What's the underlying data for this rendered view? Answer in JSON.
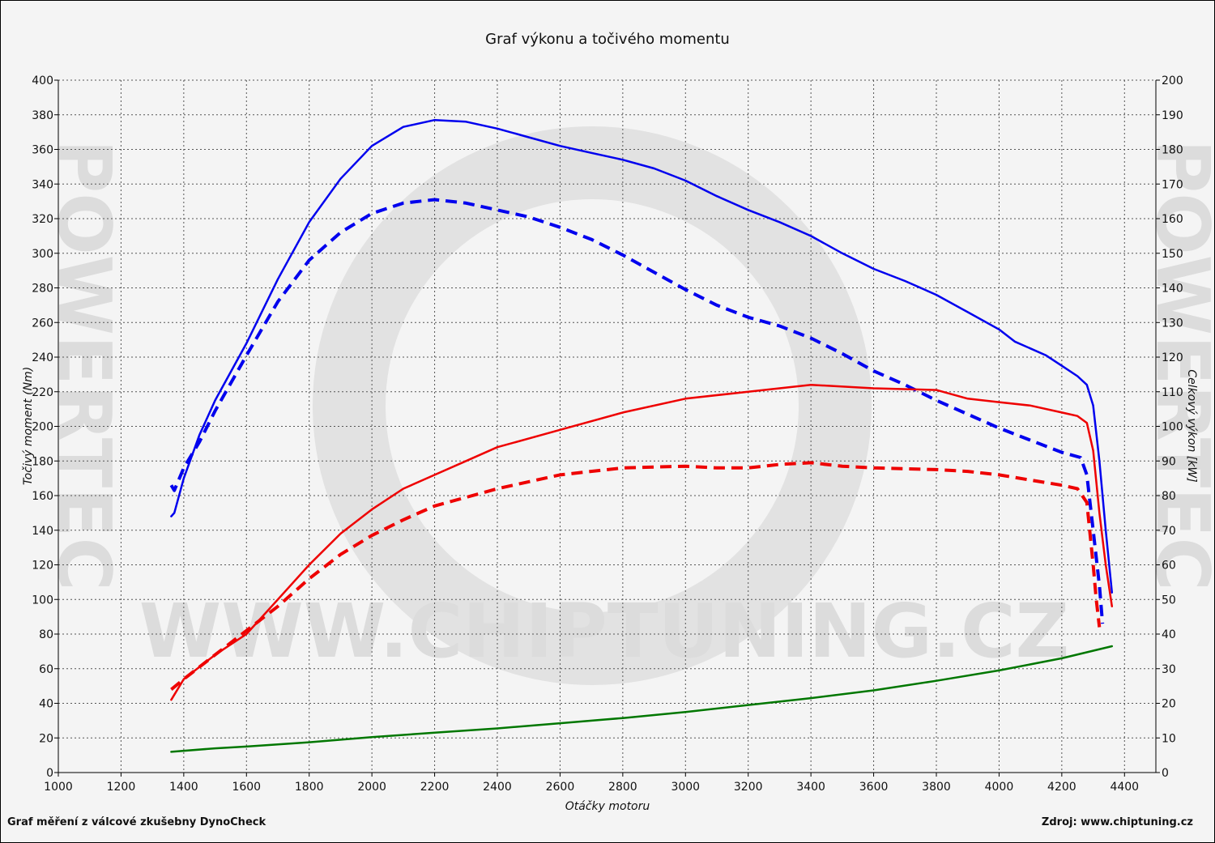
{
  "chart_data": {
    "type": "line",
    "title": "Graf výkonu a točivého momentu",
    "xlabel": "Otáčky motoru",
    "ylabel_left": "Točivý moment (Nm)",
    "ylabel_right": "Celkový výkon [kW]",
    "xlim": [
      1000,
      4500
    ],
    "ylim_left": [
      0,
      400
    ],
    "ylim_right": [
      0,
      200
    ],
    "x_ticks": [
      1000,
      1200,
      1400,
      1600,
      1800,
      2000,
      2200,
      2400,
      2600,
      2800,
      3000,
      3200,
      3400,
      3600,
      3800,
      4000,
      4200,
      4400
    ],
    "y_ticks_left": [
      0,
      20,
      40,
      60,
      80,
      100,
      120,
      140,
      160,
      180,
      200,
      220,
      240,
      260,
      280,
      300,
      320,
      340,
      360,
      380,
      400
    ],
    "y_ticks_right": [
      0,
      10,
      20,
      30,
      40,
      50,
      60,
      70,
      80,
      90,
      100,
      110,
      120,
      130,
      140,
      150,
      160,
      170,
      180,
      190,
      200
    ],
    "grid": true,
    "series": [
      {
        "axis": "left",
        "color": "#0000ee",
        "style": "solid",
        "points": [
          [
            1360,
            148
          ],
          [
            1370,
            150
          ],
          [
            1400,
            170
          ],
          [
            1450,
            195
          ],
          [
            1500,
            215
          ],
          [
            1600,
            248
          ],
          [
            1700,
            285
          ],
          [
            1800,
            318
          ],
          [
            1900,
            343
          ],
          [
            2000,
            362
          ],
          [
            2100,
            373
          ],
          [
            2200,
            377
          ],
          [
            2300,
            376
          ],
          [
            2400,
            372
          ],
          [
            2500,
            367
          ],
          [
            2600,
            362
          ],
          [
            2700,
            358
          ],
          [
            2800,
            354
          ],
          [
            2900,
            349
          ],
          [
            3000,
            342
          ],
          [
            3100,
            333
          ],
          [
            3200,
            325
          ],
          [
            3300,
            318
          ],
          [
            3400,
            310
          ],
          [
            3500,
            300
          ],
          [
            3600,
            291
          ],
          [
            3700,
            284
          ],
          [
            3800,
            276
          ],
          [
            3900,
            266
          ],
          [
            4000,
            256
          ],
          [
            4050,
            249
          ],
          [
            4100,
            245
          ],
          [
            4150,
            241
          ],
          [
            4200,
            235
          ],
          [
            4250,
            229
          ],
          [
            4280,
            224
          ],
          [
            4300,
            212
          ],
          [
            4320,
            180
          ],
          [
            4340,
            140
          ],
          [
            4360,
            104
          ]
        ]
      },
      {
        "axis": "left",
        "color": "#0000ee",
        "style": "dashed",
        "points": [
          [
            1360,
            166
          ],
          [
            1370,
            163
          ],
          [
            1400,
            176
          ],
          [
            1450,
            191
          ],
          [
            1500,
            209
          ],
          [
            1600,
            241
          ],
          [
            1700,
            272
          ],
          [
            1800,
            296
          ],
          [
            1900,
            312
          ],
          [
            2000,
            323
          ],
          [
            2100,
            329
          ],
          [
            2200,
            331
          ],
          [
            2300,
            329
          ],
          [
            2400,
            325
          ],
          [
            2500,
            321
          ],
          [
            2600,
            315
          ],
          [
            2700,
            308
          ],
          [
            2800,
            299
          ],
          [
            2900,
            289
          ],
          [
            3000,
            279
          ],
          [
            3100,
            270
          ],
          [
            3200,
            263
          ],
          [
            3300,
            258
          ],
          [
            3400,
            251
          ],
          [
            3500,
            242
          ],
          [
            3600,
            232
          ],
          [
            3700,
            224
          ],
          [
            3800,
            215
          ],
          [
            3900,
            207
          ],
          [
            4000,
            199
          ],
          [
            4100,
            192
          ],
          [
            4200,
            185
          ],
          [
            4260,
            182
          ],
          [
            4280,
            172
          ],
          [
            4300,
            140
          ],
          [
            4320,
            108
          ],
          [
            4330,
            86
          ]
        ]
      },
      {
        "axis": "right",
        "color": "#ee0000",
        "style": "solid",
        "points": [
          [
            1360,
            21
          ],
          [
            1400,
            27
          ],
          [
            1500,
            34
          ],
          [
            1600,
            40
          ],
          [
            1700,
            50
          ],
          [
            1800,
            60
          ],
          [
            1900,
            69
          ],
          [
            2000,
            76
          ],
          [
            2100,
            82
          ],
          [
            2200,
            86
          ],
          [
            2300,
            90
          ],
          [
            2400,
            94
          ],
          [
            2600,
            99
          ],
          [
            2800,
            104
          ],
          [
            3000,
            108
          ],
          [
            3200,
            110
          ],
          [
            3400,
            112
          ],
          [
            3600,
            111
          ],
          [
            3800,
            110.5
          ],
          [
            3900,
            108
          ],
          [
            4000,
            107
          ],
          [
            4100,
            106
          ],
          [
            4200,
            104
          ],
          [
            4250,
            103
          ],
          [
            4280,
            101
          ],
          [
            4300,
            93
          ],
          [
            4320,
            75
          ],
          [
            4340,
            60
          ],
          [
            4360,
            48
          ]
        ]
      },
      {
        "axis": "right",
        "color": "#ee0000",
        "style": "dashed",
        "points": [
          [
            1360,
            24
          ],
          [
            1400,
            27
          ],
          [
            1500,
            34
          ],
          [
            1600,
            41
          ],
          [
            1700,
            48
          ],
          [
            1800,
            56
          ],
          [
            1900,
            63
          ],
          [
            2000,
            68.5
          ],
          [
            2100,
            73
          ],
          [
            2200,
            77
          ],
          [
            2400,
            82
          ],
          [
            2600,
            86
          ],
          [
            2800,
            88
          ],
          [
            3000,
            88.5
          ],
          [
            3100,
            88
          ],
          [
            3200,
            88
          ],
          [
            3300,
            89
          ],
          [
            3400,
            89.5
          ],
          [
            3500,
            88.5
          ],
          [
            3600,
            88
          ],
          [
            3800,
            87.5
          ],
          [
            3900,
            87
          ],
          [
            4000,
            86
          ],
          [
            4100,
            84.5
          ],
          [
            4200,
            83
          ],
          [
            4250,
            82
          ],
          [
            4280,
            78
          ],
          [
            4300,
            60
          ],
          [
            4310,
            50
          ],
          [
            4320,
            42
          ]
        ]
      },
      {
        "axis": "left",
        "color": "#007700",
        "style": "solid",
        "points": [
          [
            1360,
            12
          ],
          [
            1500,
            14
          ],
          [
            1600,
            15
          ],
          [
            1800,
            17.5
          ],
          [
            2000,
            20.5
          ],
          [
            2200,
            23
          ],
          [
            2400,
            25.5
          ],
          [
            2600,
            28.5
          ],
          [
            2800,
            31.5
          ],
          [
            3000,
            35
          ],
          [
            3200,
            39
          ],
          [
            3400,
            43
          ],
          [
            3600,
            47.5
          ],
          [
            3800,
            53
          ],
          [
            4000,
            59
          ],
          [
            4200,
            66
          ],
          [
            4360,
            73
          ]
        ]
      }
    ]
  },
  "footer": {
    "left": "Graf měření z válcové zkušebny DynoCheck",
    "right": "Zdroj: www.chiptuning.cz"
  },
  "watermark": {
    "url_text": "WWW.CHIPTUNING.CZ",
    "side_text": "POWERTEC"
  }
}
